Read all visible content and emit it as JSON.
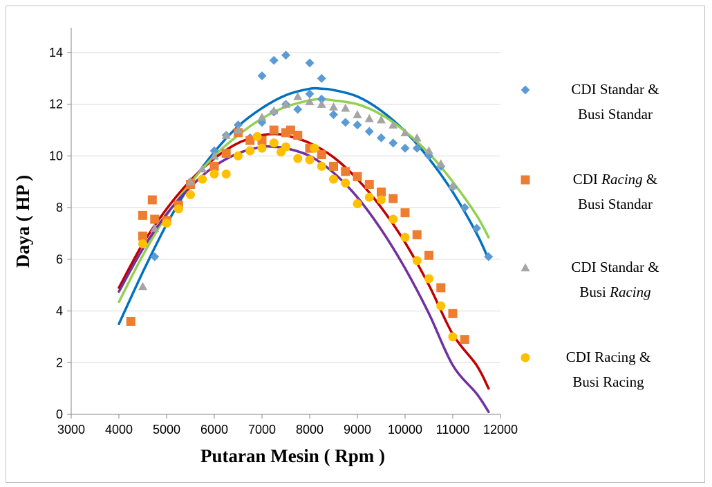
{
  "chart_data": {
    "type": "scatter",
    "xlabel": "Putaran Mesin ( Rpm )",
    "ylabel": "Daya ( HP )",
    "xlim": [
      3000,
      12000
    ],
    "ylim": [
      0,
      15
    ],
    "x_ticks": [
      "3000",
      "4000",
      "5000",
      "6000",
      "7000",
      "8000",
      "9000",
      "10000",
      "11000",
      "12000"
    ],
    "y_ticks": [
      "0",
      "2",
      "4",
      "6",
      "8",
      "10",
      "12",
      "14"
    ],
    "grid": "horizontal",
    "legend_position": "right",
    "series": [
      {
        "name": "CDI Standar & Busi Standar",
        "legend_lines": [
          [
            {
              "text": "CDI Standar &",
              "italic": false
            }
          ],
          [
            {
              "text": "Busi Standar",
              "italic": false
            }
          ]
        ],
        "marker": "diamond",
        "color": "#5b9bd5",
        "trend_color": "#0070c0",
        "points": [
          [
            4750,
            6.1
          ],
          [
            5500,
            9.0
          ],
          [
            6000,
            10.2
          ],
          [
            6250,
            10.8
          ],
          [
            6500,
            11.2
          ],
          [
            6750,
            10.7
          ],
          [
            7000,
            11.3
          ],
          [
            7000,
            13.1
          ],
          [
            7250,
            11.7
          ],
          [
            7250,
            13.7
          ],
          [
            7500,
            13.9
          ],
          [
            7500,
            12.0
          ],
          [
            7750,
            11.8
          ],
          [
            8000,
            12.4
          ],
          [
            8000,
            13.6
          ],
          [
            8250,
            13.0
          ],
          [
            8250,
            12.2
          ],
          [
            8500,
            11.6
          ],
          [
            8750,
            11.3
          ],
          [
            9000,
            11.2
          ],
          [
            9250,
            10.95
          ],
          [
            9500,
            10.7
          ],
          [
            9750,
            10.5
          ],
          [
            10000,
            10.3
          ],
          [
            10250,
            10.3
          ],
          [
            10500,
            10.0
          ],
          [
            10750,
            9.6
          ],
          [
            11000,
            8.8
          ],
          [
            11250,
            8.0
          ],
          [
            11500,
            7.2
          ],
          [
            11750,
            6.1
          ]
        ],
        "trend": [
          [
            4000,
            3.5
          ],
          [
            4500,
            5.5
          ],
          [
            5000,
            7.35
          ],
          [
            5500,
            8.9
          ],
          [
            6000,
            10.15
          ],
          [
            6500,
            11.15
          ],
          [
            7000,
            11.85
          ],
          [
            7500,
            12.35
          ],
          [
            8000,
            12.6
          ],
          [
            8250,
            12.6
          ],
          [
            8500,
            12.55
          ],
          [
            9000,
            12.3
          ],
          [
            9500,
            11.75
          ],
          [
            10000,
            10.95
          ],
          [
            10500,
            9.9
          ],
          [
            11000,
            8.6
          ],
          [
            11500,
            7.0
          ],
          [
            11750,
            6.0
          ]
        ]
      },
      {
        "name": "CDI Racing & Busi Standar",
        "legend_lines": [
          [
            {
              "text": "CDI ",
              "italic": false
            },
            {
              "text": "Racing",
              "italic": true
            },
            {
              "text": " &",
              "italic": false
            }
          ],
          [
            {
              "text": "Busi Standar",
              "italic": false
            }
          ]
        ],
        "marker": "square",
        "color": "#ed7d31",
        "trend_color": "#c00000",
        "points": [
          [
            4250,
            3.6
          ],
          [
            4500,
            6.9
          ],
          [
            4500,
            7.7
          ],
          [
            4700,
            8.3
          ],
          [
            4750,
            7.55
          ],
          [
            5000,
            7.5
          ],
          [
            5250,
            8.1
          ],
          [
            5500,
            8.9
          ],
          [
            6000,
            9.6
          ],
          [
            6250,
            10.1
          ],
          [
            6500,
            10.9
          ],
          [
            6750,
            10.6
          ],
          [
            7000,
            10.6
          ],
          [
            7250,
            11.0
          ],
          [
            7500,
            10.9
          ],
          [
            7600,
            11.0
          ],
          [
            7750,
            10.8
          ],
          [
            8000,
            10.3
          ],
          [
            8250,
            10.05
          ],
          [
            8500,
            9.6
          ],
          [
            8750,
            9.4
          ],
          [
            9000,
            9.2
          ],
          [
            9250,
            8.9
          ],
          [
            9500,
            8.6
          ],
          [
            9750,
            8.35
          ],
          [
            10000,
            7.8
          ],
          [
            10250,
            6.95
          ],
          [
            10500,
            6.15
          ],
          [
            10750,
            4.9
          ],
          [
            11000,
            3.9
          ],
          [
            11250,
            2.9
          ]
        ],
        "trend": [
          [
            4000,
            4.9
          ],
          [
            4500,
            6.6
          ],
          [
            5000,
            7.95
          ],
          [
            5500,
            9.05
          ],
          [
            6000,
            9.9
          ],
          [
            6500,
            10.5
          ],
          [
            7000,
            10.8
          ],
          [
            7250,
            10.85
          ],
          [
            7500,
            10.8
          ],
          [
            8000,
            10.5
          ],
          [
            8500,
            9.95
          ],
          [
            9000,
            9.1
          ],
          [
            9500,
            8.0
          ],
          [
            10000,
            6.65
          ],
          [
            10500,
            5.0
          ],
          [
            11000,
            3.1
          ],
          [
            11500,
            1.9
          ],
          [
            11750,
            1.0
          ]
        ]
      },
      {
        "name": "CDI Standar & Busi Racing",
        "legend_lines": [
          [
            {
              "text": "CDI Standar &",
              "italic": false
            }
          ],
          [
            {
              "text": "Busi ",
              "italic": false
            },
            {
              "text": "Racing",
              "italic": true
            }
          ]
        ],
        "marker": "triangle",
        "color": "#a5a5a5",
        "trend_color": "#92d050",
        "points": [
          [
            4500,
            4.95
          ],
          [
            4750,
            7.2
          ],
          [
            5500,
            9.0
          ],
          [
            5750,
            9.5
          ],
          [
            6000,
            10.0
          ],
          [
            6250,
            10.8
          ],
          [
            6500,
            11.0
          ],
          [
            7000,
            11.5
          ],
          [
            7250,
            11.75
          ],
          [
            7500,
            12.0
          ],
          [
            7750,
            12.3
          ],
          [
            8000,
            12.1
          ],
          [
            8250,
            12.0
          ],
          [
            8500,
            11.9
          ],
          [
            8750,
            11.85
          ],
          [
            9000,
            11.6
          ],
          [
            9250,
            11.45
          ],
          [
            9500,
            11.4
          ],
          [
            9750,
            11.2
          ],
          [
            10000,
            10.9
          ],
          [
            10250,
            10.7
          ],
          [
            10500,
            10.2
          ],
          [
            10750,
            9.7
          ],
          [
            11000,
            8.85
          ]
        ],
        "trend": [
          [
            4000,
            4.35
          ],
          [
            4500,
            6.15
          ],
          [
            5000,
            7.7
          ],
          [
            5500,
            8.95
          ],
          [
            6000,
            10.0
          ],
          [
            6500,
            10.8
          ],
          [
            7000,
            11.45
          ],
          [
            7500,
            11.9
          ],
          [
            8000,
            12.15
          ],
          [
            8250,
            12.2
          ],
          [
            8500,
            12.15
          ],
          [
            9000,
            12.0
          ],
          [
            9500,
            11.6
          ],
          [
            10000,
            10.95
          ],
          [
            10500,
            10.1
          ],
          [
            11000,
            9.0
          ],
          [
            11500,
            7.7
          ],
          [
            11750,
            6.85
          ]
        ]
      },
      {
        "name": "CDI Racing & Busi Racing",
        "legend_lines": [
          [
            {
              "text": "CDI Racing &",
              "italic": false
            }
          ],
          [
            {
              "text": "Busi Racing",
              "italic": false
            }
          ]
        ],
        "marker": "circle",
        "color": "#ffc000",
        "trend_color": "#7030a0",
        "points": [
          [
            4500,
            6.6
          ],
          [
            5000,
            7.4
          ],
          [
            5250,
            7.95
          ],
          [
            5500,
            8.5
          ],
          [
            5750,
            9.1
          ],
          [
            6000,
            9.3
          ],
          [
            6250,
            9.3
          ],
          [
            6500,
            10.0
          ],
          [
            6750,
            10.2
          ],
          [
            6900,
            10.75
          ],
          [
            7000,
            10.3
          ],
          [
            7250,
            10.5
          ],
          [
            7400,
            10.15
          ],
          [
            7500,
            10.35
          ],
          [
            7750,
            9.9
          ],
          [
            8000,
            9.85
          ],
          [
            8100,
            10.3
          ],
          [
            8250,
            9.6
          ],
          [
            8500,
            9.1
          ],
          [
            8750,
            8.95
          ],
          [
            9000,
            8.15
          ],
          [
            9250,
            8.4
          ],
          [
            9500,
            8.3
          ],
          [
            9750,
            7.55
          ],
          [
            10000,
            6.85
          ],
          [
            10250,
            5.95
          ],
          [
            10500,
            5.25
          ],
          [
            10750,
            4.2
          ],
          [
            11000,
            3.0
          ]
        ],
        "trend": [
          [
            4000,
            4.75
          ],
          [
            4500,
            6.4
          ],
          [
            5000,
            7.75
          ],
          [
            5500,
            8.8
          ],
          [
            6000,
            9.6
          ],
          [
            6500,
            10.1
          ],
          [
            7000,
            10.35
          ],
          [
            7250,
            10.35
          ],
          [
            7500,
            10.3
          ],
          [
            8000,
            10.0
          ],
          [
            8500,
            9.35
          ],
          [
            9000,
            8.4
          ],
          [
            9500,
            7.15
          ],
          [
            10000,
            5.65
          ],
          [
            10500,
            3.9
          ],
          [
            11000,
            1.9
          ],
          [
            11500,
            0.8
          ],
          [
            11750,
            0.1
          ]
        ]
      }
    ]
  }
}
